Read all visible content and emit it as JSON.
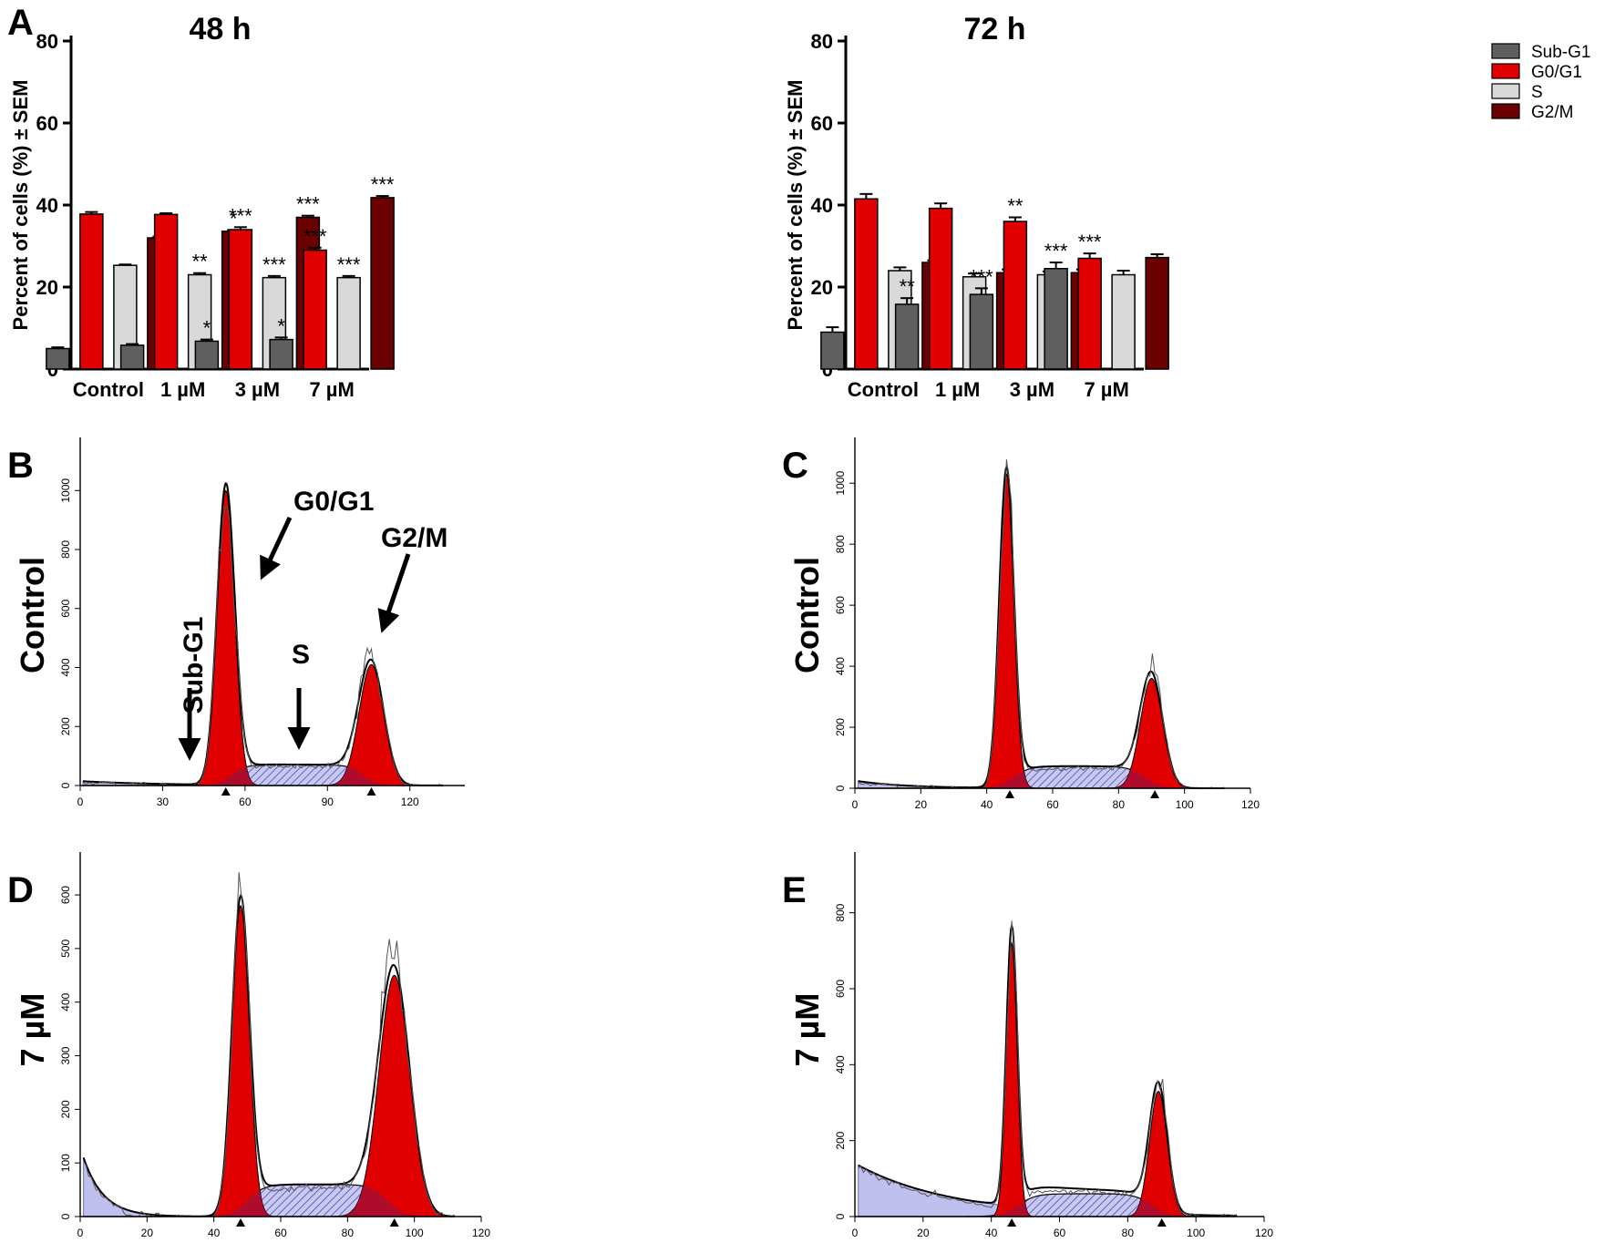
{
  "panel_letters": {
    "A": "A",
    "B": "B",
    "C": "C",
    "D": "D",
    "E": "E"
  },
  "row_labels": {
    "B": "Control",
    "C": "Control",
    "D": "7 µM",
    "E": "7 µM"
  },
  "peak_annotations": {
    "sub_g1": "Sub-G1",
    "g0g1": "G0/G1",
    "s": "S",
    "g2m": "G2/M"
  },
  "colors": {
    "sub_g1": "#5f5f5f",
    "g0g1": "#e00000",
    "s": "#d9d9d9",
    "g2m": "#6b0000",
    "fit_fill": "#c0c0ee",
    "fit_hatch": "#3a3ab0"
  },
  "chart_data": [
    {
      "id": "A_48h",
      "type": "bar",
      "title": "48 h",
      "ylabel": "Percent of cells (%) ± SEM",
      "xlabel": "",
      "ylim": [
        0,
        80
      ],
      "yticks": [
        0,
        20,
        40,
        60,
        80
      ],
      "categories": [
        "Control",
        "1  µM",
        "3  µM",
        "7  µM"
      ],
      "series": [
        {
          "name": "Sub-G1",
          "color_key": "sub_g1",
          "values": [
            5,
            5.8,
            6.8,
            7.2
          ],
          "err": [
            0.3,
            0.3,
            0.4,
            0.5
          ],
          "sig": [
            "",
            "",
            "*",
            "*"
          ]
        },
        {
          "name": "G0/G1",
          "color_key": "g0g1",
          "values": [
            37.8,
            37.7,
            34.0,
            29.0
          ],
          "err": [
            0.5,
            0.3,
            0.6,
            0.6
          ],
          "sig": [
            "",
            "",
            "***",
            "***"
          ]
        },
        {
          "name": "S",
          "color_key": "s",
          "values": [
            25.3,
            23.0,
            22.3,
            22.3
          ],
          "err": [
            0.2,
            0.4,
            0.4,
            0.4
          ],
          "sig": [
            "",
            "**",
            "***",
            "***"
          ]
        },
        {
          "name": "G2/M",
          "color_key": "g2m",
          "values": [
            32.0,
            33.6,
            37.0,
            41.8
          ],
          "err": [
            0.3,
            0.3,
            0.4,
            0.4
          ],
          "sig": [
            "",
            "*",
            "***",
            "***"
          ]
        }
      ],
      "legend": "none"
    },
    {
      "id": "A_72h",
      "type": "bar",
      "title": "72 h",
      "ylabel": "Percent of cells (%) ± SEM",
      "xlabel": "",
      "ylim": [
        0,
        80
      ],
      "yticks": [
        0,
        20,
        40,
        60,
        80
      ],
      "categories": [
        "Control",
        "1  µM",
        "3  µM",
        "7  µM"
      ],
      "series": [
        {
          "name": "Sub-G1",
          "color_key": "sub_g1",
          "values": [
            9.0,
            15.8,
            18.2,
            24.5
          ],
          "err": [
            1.2,
            1.5,
            1.5,
            1.5
          ],
          "sig": [
            "",
            "**",
            "***",
            "***"
          ]
        },
        {
          "name": "G0/G1",
          "color_key": "g0g1",
          "values": [
            41.5,
            39.2,
            36.0,
            27.0
          ],
          "err": [
            1.2,
            1.2,
            1.0,
            1.2
          ],
          "sig": [
            "",
            "",
            "**",
            "***"
          ]
        },
        {
          "name": "S",
          "color_key": "s",
          "values": [
            24.0,
            22.5,
            23.0,
            23.0
          ],
          "err": [
            0.8,
            0.8,
            0.8,
            1.0
          ],
          "sig": [
            "",
            "",
            "",
            ""
          ]
        },
        {
          "name": "G2/M",
          "color_key": "g2m",
          "values": [
            26.0,
            23.5,
            23.5,
            27.2
          ],
          "err": [
            0.5,
            0.8,
            0.8,
            0.8
          ],
          "sig": [
            "",
            "",
            "",
            ""
          ]
        }
      ],
      "legend": "top-right"
    },
    {
      "id": "B",
      "type": "area",
      "xlim": [
        0,
        140
      ],
      "ylim": [
        0,
        1180
      ],
      "xticks": [
        0,
        30,
        60,
        90,
        120
      ],
      "yticks": [
        0,
        200,
        400,
        600,
        800,
        1000
      ],
      "markers": [
        53,
        106
      ],
      "g1": {
        "mu": 53,
        "sigma": 3.2,
        "amp": 1000
      },
      "g2": {
        "mu": 106,
        "sigma": 4.5,
        "amp": 410
      },
      "s": {
        "x0": 55,
        "x1": 103,
        "level": 70
      },
      "debris": {
        "amp": 15,
        "decay": 30
      }
    },
    {
      "id": "C",
      "type": "area",
      "xlim": [
        0,
        120
      ],
      "ylim": [
        0,
        1150
      ],
      "xticks": [
        0,
        20,
        40,
        60,
        80,
        100,
        120
      ],
      "yticks": [
        0,
        200,
        400,
        600,
        800,
        1000
      ],
      "markers": [
        47,
        91
      ],
      "g1": {
        "mu": 46,
        "sigma": 2.2,
        "amp": 1030
      },
      "g2": {
        "mu": 90,
        "sigma": 3.4,
        "amp": 360
      },
      "s": {
        "x0": 48,
        "x1": 88,
        "level": 72
      },
      "debris": {
        "amp": 25,
        "decay": 15
      }
    },
    {
      "id": "D",
      "type": "area",
      "xlim": [
        0,
        120
      ],
      "ylim": [
        0,
        680
      ],
      "xticks": [
        0,
        20,
        40,
        60,
        80,
        100,
        120
      ],
      "yticks": [
        0,
        100,
        200,
        300,
        400,
        500,
        600
      ],
      "markers": [
        48,
        94
      ],
      "g1": {
        "mu": 48,
        "sigma": 2.6,
        "amp": 580
      },
      "g2": {
        "mu": 94,
        "sigma": 4.6,
        "amp": 450
      },
      "s": {
        "x0": 50,
        "x1": 92,
        "level": 60
      },
      "debris": {
        "amp": 130,
        "decay": 6
      }
    },
    {
      "id": "E",
      "type": "area",
      "xlim": [
        0,
        120
      ],
      "ylim": [
        0,
        960
      ],
      "xticks": [
        0,
        20,
        40,
        60,
        80,
        100,
        120
      ],
      "yticks": [
        0,
        200,
        400,
        600,
        800
      ],
      "markers": [
        46,
        90
      ],
      "g1": {
        "mu": 46,
        "sigma": 1.6,
        "amp": 720
      },
      "g2": {
        "mu": 89,
        "sigma": 2.6,
        "amp": 330
      },
      "s": {
        "x0": 48,
        "x1": 87,
        "level": 60
      },
      "debris": {
        "amp": 140,
        "decay": 28
      }
    }
  ]
}
